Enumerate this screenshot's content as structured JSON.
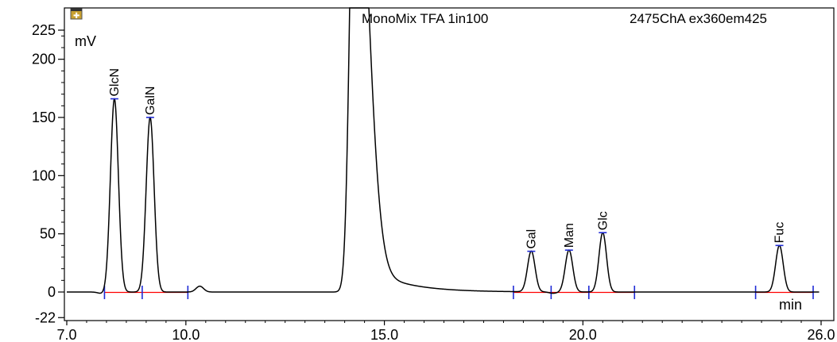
{
  "chart_data": {
    "type": "line",
    "title_left": "MonoMix TFA 1in100",
    "title_right": "2475ChA ex360em425",
    "ylabel": "mV",
    "xlabel": "min",
    "xlim": [
      7.0,
      26.0
    ],
    "ylim": [
      -22,
      225
    ],
    "x_ticks": [
      7.0,
      10.0,
      15.0,
      20.0,
      26.0
    ],
    "x_tick_labels": [
      "7.0",
      "10.0",
      "15.0",
      "20.0",
      "26.0"
    ],
    "y_ticks": [
      -22,
      0,
      50,
      100,
      150,
      200,
      225
    ],
    "y_tick_labels": [
      "-22",
      "0",
      "50",
      "100",
      "150",
      "200",
      "225"
    ],
    "series": [
      {
        "color": "#000000",
        "baseline_mv": 0,
        "peaks": [
          {
            "label": "GlcN",
            "retention_time": 8.2,
            "height": 166
          },
          {
            "label": "GalN",
            "retention_time": 9.1,
            "height": 150
          },
          {
            "label": "",
            "retention_time": 10.35,
            "height": 5
          },
          {
            "label": "",
            "retention_time": 14.25,
            "height": 420
          },
          {
            "label": "Gal",
            "retention_time": 18.7,
            "height": 35
          },
          {
            "label": "Man",
            "retention_time": 19.65,
            "height": 36
          },
          {
            "label": "Glc",
            "retention_time": 20.5,
            "height": 51
          },
          {
            "label": "Fuc",
            "retention_time": 24.95,
            "height": 40
          }
        ]
      }
    ],
    "integration_baselines": [
      {
        "color": "#ff0000",
        "start": 7.95,
        "end": 10.05
      },
      {
        "color": "#ff0000",
        "start": 18.25,
        "end": 21.3
      },
      {
        "color": "#ff0000",
        "start": 24.35,
        "end": 25.8
      }
    ],
    "integration_marks": [
      7.95,
      8.9,
      10.05,
      18.25,
      19.2,
      20.15,
      21.3,
      24.35,
      25.8
    ]
  }
}
